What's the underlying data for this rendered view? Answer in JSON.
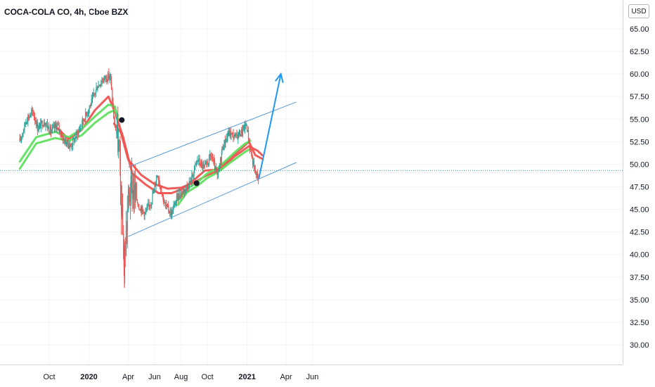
{
  "header": {
    "title": "COCA-COLA CO, 4h, Cboe BZX",
    "currency": "USD"
  },
  "chart_data": {
    "type": "candlestick",
    "ylim": [
      28.75,
      66.25
    ],
    "y_ticks": [
      "65.00",
      "62.50",
      "60.00",
      "57.50",
      "55.00",
      "52.50",
      "50.00",
      "47.50",
      "45.00",
      "42.50",
      "40.00",
      "37.50",
      "35.00",
      "32.50",
      "30.00"
    ],
    "x_ticks": [
      {
        "label": "Oct",
        "date": "2019-10-01",
        "bold": false
      },
      {
        "label": "2020",
        "date": "2020-01-01",
        "bold": true
      },
      {
        "label": "Apr",
        "date": "2020-04-01",
        "bold": false
      },
      {
        "label": "Jun",
        "date": "2020-06-01",
        "bold": false
      },
      {
        "label": "Aug",
        "date": "2020-08-01",
        "bold": false
      },
      {
        "label": "Oct",
        "date": "2020-10-01",
        "bold": false
      },
      {
        "label": "2021",
        "date": "2021-01-01",
        "bold": true
      },
      {
        "label": "Apr",
        "date": "2021-04-01",
        "bold": false
      },
      {
        "label": "Jun",
        "date": "2021-06-01",
        "bold": false
      }
    ],
    "last_price": 49.3,
    "price_path": [
      [
        "2019-07-25",
        52.5
      ],
      [
        "2019-08-10",
        55.0
      ],
      [
        "2019-08-25",
        55.8
      ],
      [
        "2019-09-05",
        54.0
      ],
      [
        "2019-09-20",
        54.8
      ],
      [
        "2019-10-05",
        53.6
      ],
      [
        "2019-10-20",
        54.4
      ],
      [
        "2019-11-05",
        52.6
      ],
      [
        "2019-11-20",
        52.0
      ],
      [
        "2019-12-05",
        53.4
      ],
      [
        "2019-12-20",
        55.0
      ],
      [
        "2020-01-05",
        56.6
      ],
      [
        "2020-01-20",
        58.6
      ],
      [
        "2020-02-05",
        59.5
      ],
      [
        "2020-02-20",
        59.8
      ],
      [
        "2020-02-28",
        55.0
      ],
      [
        "2020-03-10",
        52.0
      ],
      [
        "2020-03-23",
        38.5
      ],
      [
        "2020-04-01",
        46.0
      ],
      [
        "2020-04-10",
        47.5
      ],
      [
        "2020-04-25",
        45.5
      ],
      [
        "2020-05-10",
        44.5
      ],
      [
        "2020-05-25",
        46.0
      ],
      [
        "2020-06-08",
        49.0
      ],
      [
        "2020-06-25",
        45.5
      ],
      [
        "2020-07-10",
        44.5
      ],
      [
        "2020-07-25",
        46.5
      ],
      [
        "2020-08-10",
        47.2
      ],
      [
        "2020-08-25",
        48.3
      ],
      [
        "2020-09-08",
        50.5
      ],
      [
        "2020-09-25",
        49.5
      ],
      [
        "2020-10-10",
        51.0
      ],
      [
        "2020-10-25",
        48.5
      ],
      [
        "2020-11-05",
        51.8
      ],
      [
        "2020-11-20",
        53.5
      ],
      [
        "2020-12-05",
        53.0
      ],
      [
        "2020-12-20",
        53.6
      ],
      [
        "2020-12-31",
        54.4
      ],
      [
        "2021-01-10",
        51.3
      ],
      [
        "2021-01-20",
        49.0
      ],
      [
        "2021-01-28",
        48.6
      ]
    ],
    "series": [
      {
        "color": "#ef5350",
        "points": [
          [
            "2019-10-15",
            54.2
          ],
          [
            "2019-11-15",
            52.8
          ],
          [
            "2019-12-15",
            53.8
          ],
          [
            "2020-01-15",
            56.0
          ],
          [
            "2020-02-15",
            57.5
          ],
          [
            "2020-03-01",
            55.8
          ],
          [
            "2020-03-20",
            53.0
          ],
          [
            "2020-04-10",
            49.0
          ],
          [
            "2020-05-10",
            47.8
          ],
          [
            "2020-06-10",
            46.8
          ],
          [
            "2020-07-10",
            46.8
          ],
          [
            "2020-08-01",
            47.2
          ],
          [
            "2020-08-25",
            48.0
          ],
          [
            "2020-09-25",
            49.3
          ],
          [
            "2020-10-25",
            49.4
          ],
          [
            "2020-11-25",
            50.8
          ],
          [
            "2020-12-20",
            51.8
          ],
          [
            "2021-01-05",
            52.5
          ],
          [
            "2021-01-20",
            51.0
          ],
          [
            "2021-02-05",
            50.6
          ]
        ]
      },
      {
        "color": "#ef5350",
        "points": [
          [
            "2020-02-28",
            54.5
          ],
          [
            "2020-03-15",
            53.5
          ],
          [
            "2020-04-01",
            50.5
          ],
          [
            "2020-05-01",
            48.8
          ],
          [
            "2020-06-01",
            47.8
          ],
          [
            "2020-07-01",
            47.3
          ],
          [
            "2020-08-01",
            47.4
          ],
          [
            "2020-09-01",
            48.0
          ],
          [
            "2020-10-01",
            48.8
          ],
          [
            "2020-11-01",
            49.4
          ],
          [
            "2020-12-01",
            50.8
          ],
          [
            "2021-01-05",
            52.0
          ],
          [
            "2021-01-25",
            51.5
          ],
          [
            "2021-02-05",
            51.0
          ]
        ]
      },
      {
        "color": "#5fe05f",
        "points": [
          [
            "2019-07-25",
            50.3
          ],
          [
            "2019-09-01",
            53.0
          ],
          [
            "2019-10-15",
            53.6
          ],
          [
            "2019-11-15",
            53.0
          ],
          [
            "2019-12-15",
            53.9
          ],
          [
            "2020-01-15",
            55.3
          ],
          [
            "2020-02-15",
            56.6
          ],
          [
            "2020-03-01",
            56.4
          ],
          [
            "2020-03-08",
            55.0
          ]
        ]
      },
      {
        "color": "#5fe05f",
        "points": [
          [
            "2019-07-25",
            49.5
          ],
          [
            "2019-09-01",
            52.3
          ],
          [
            "2019-10-15",
            52.9
          ],
          [
            "2019-11-15",
            52.6
          ],
          [
            "2019-12-15",
            53.2
          ],
          [
            "2020-01-15",
            54.6
          ],
          [
            "2020-02-15",
            55.7
          ],
          [
            "2020-03-01",
            56.0
          ],
          [
            "2020-03-08",
            55.4
          ]
        ]
      },
      {
        "color": "#5fe05f",
        "points": [
          [
            "2020-07-25",
            46.0
          ],
          [
            "2020-08-15",
            47.3
          ],
          [
            "2020-09-08",
            48.0
          ],
          [
            "2020-10-01",
            49.0
          ],
          [
            "2020-10-25",
            49.6
          ],
          [
            "2020-11-15",
            50.5
          ],
          [
            "2020-12-05",
            51.4
          ],
          [
            "2020-12-25",
            52.2
          ],
          [
            "2021-01-08",
            52.6
          ]
        ]
      },
      {
        "color": "#5fe05f",
        "points": [
          [
            "2020-07-25",
            45.5
          ],
          [
            "2020-08-15",
            46.9
          ],
          [
            "2020-09-08",
            47.6
          ],
          [
            "2020-10-01",
            48.5
          ],
          [
            "2020-10-25",
            49.1
          ],
          [
            "2020-11-15",
            49.9
          ],
          [
            "2020-12-05",
            50.6
          ],
          [
            "2020-12-25",
            51.3
          ],
          [
            "2021-01-08",
            51.7
          ]
        ]
      }
    ],
    "trendlines": [
      {
        "name": "upper-channel",
        "from": [
          "2020-04-01",
          49.7
        ],
        "to": [
          "2021-04-25",
          56.9
        ],
        "color": "#5b9bd5"
      },
      {
        "name": "lower-channel",
        "from": [
          "2020-04-01",
          42.0
        ],
        "to": [
          "2021-04-25",
          50.2
        ],
        "color": "#5b9bd5"
      }
    ],
    "arrow": {
      "from": [
        "2021-01-28",
        48.4
      ],
      "to": [
        "2021-03-20",
        60.0
      ],
      "color": "#2196f3"
    },
    "markers": [
      {
        "at": [
          "2020-03-17",
          54.9
        ],
        "color": "#131722"
      },
      {
        "at": [
          "2020-09-06",
          47.9
        ],
        "color": "#131722"
      }
    ]
  }
}
